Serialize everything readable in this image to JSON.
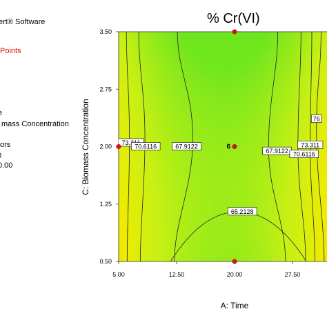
{
  "left_panel": {
    "lines": [
      {
        "text": "ert® Software",
        "red": false
      },
      {
        "text": "Points",
        "red": true
      },
      {
        "text": "e",
        "red": false
      },
      {
        "text": "mass Concentration",
        "red": false
      },
      {
        "text": "ors",
        "red": false
      },
      {
        "text": "0",
        "red": false
      },
      {
        "text": "0.00",
        "red": false
      }
    ]
  },
  "chart_data": {
    "type": "contour",
    "title": "% Cr(VI)",
    "xlabel": "A: Time",
    "ylabel": "C: Biomass Concentration",
    "xlim": [
      5.0,
      31.0
    ],
    "ylim": [
      0.5,
      3.5
    ],
    "x_ticks": [
      "5.00",
      "12.50",
      "20.00",
      "27.50"
    ],
    "y_ticks": [
      "0.50",
      "1.25",
      "2.00",
      "2.75",
      "3.50"
    ],
    "contour_levels": [
      "65.2128",
      "67.9122",
      "70.6116",
      "73.311",
      "76"
    ],
    "contour_labels": [
      {
        "level": "73.311",
        "x": 6.6,
        "y": 2.05
      },
      {
        "level": "70.6116",
        "x": 8.5,
        "y": 2.0
      },
      {
        "level": "67.9122",
        "x": 13.8,
        "y": 2.0
      },
      {
        "level": "67.9122",
        "x": 25.5,
        "y": 1.94
      },
      {
        "level": "70.6116",
        "x": 29.0,
        "y": 1.9
      },
      {
        "level": "73.311",
        "x": 29.8,
        "y": 2.02
      },
      {
        "level": "76",
        "x": 30.6,
        "y": 2.36
      },
      {
        "level": "65.2128",
        "x": 21.0,
        "y": 1.15
      }
    ],
    "design_points": [
      {
        "x": 5.0,
        "y": 2.0
      },
      {
        "x": 20.0,
        "y": 3.5
      },
      {
        "x": 20.0,
        "y": 2.0,
        "label": "6"
      },
      {
        "x": 20.0,
        "y": 0.5
      }
    ]
  }
}
